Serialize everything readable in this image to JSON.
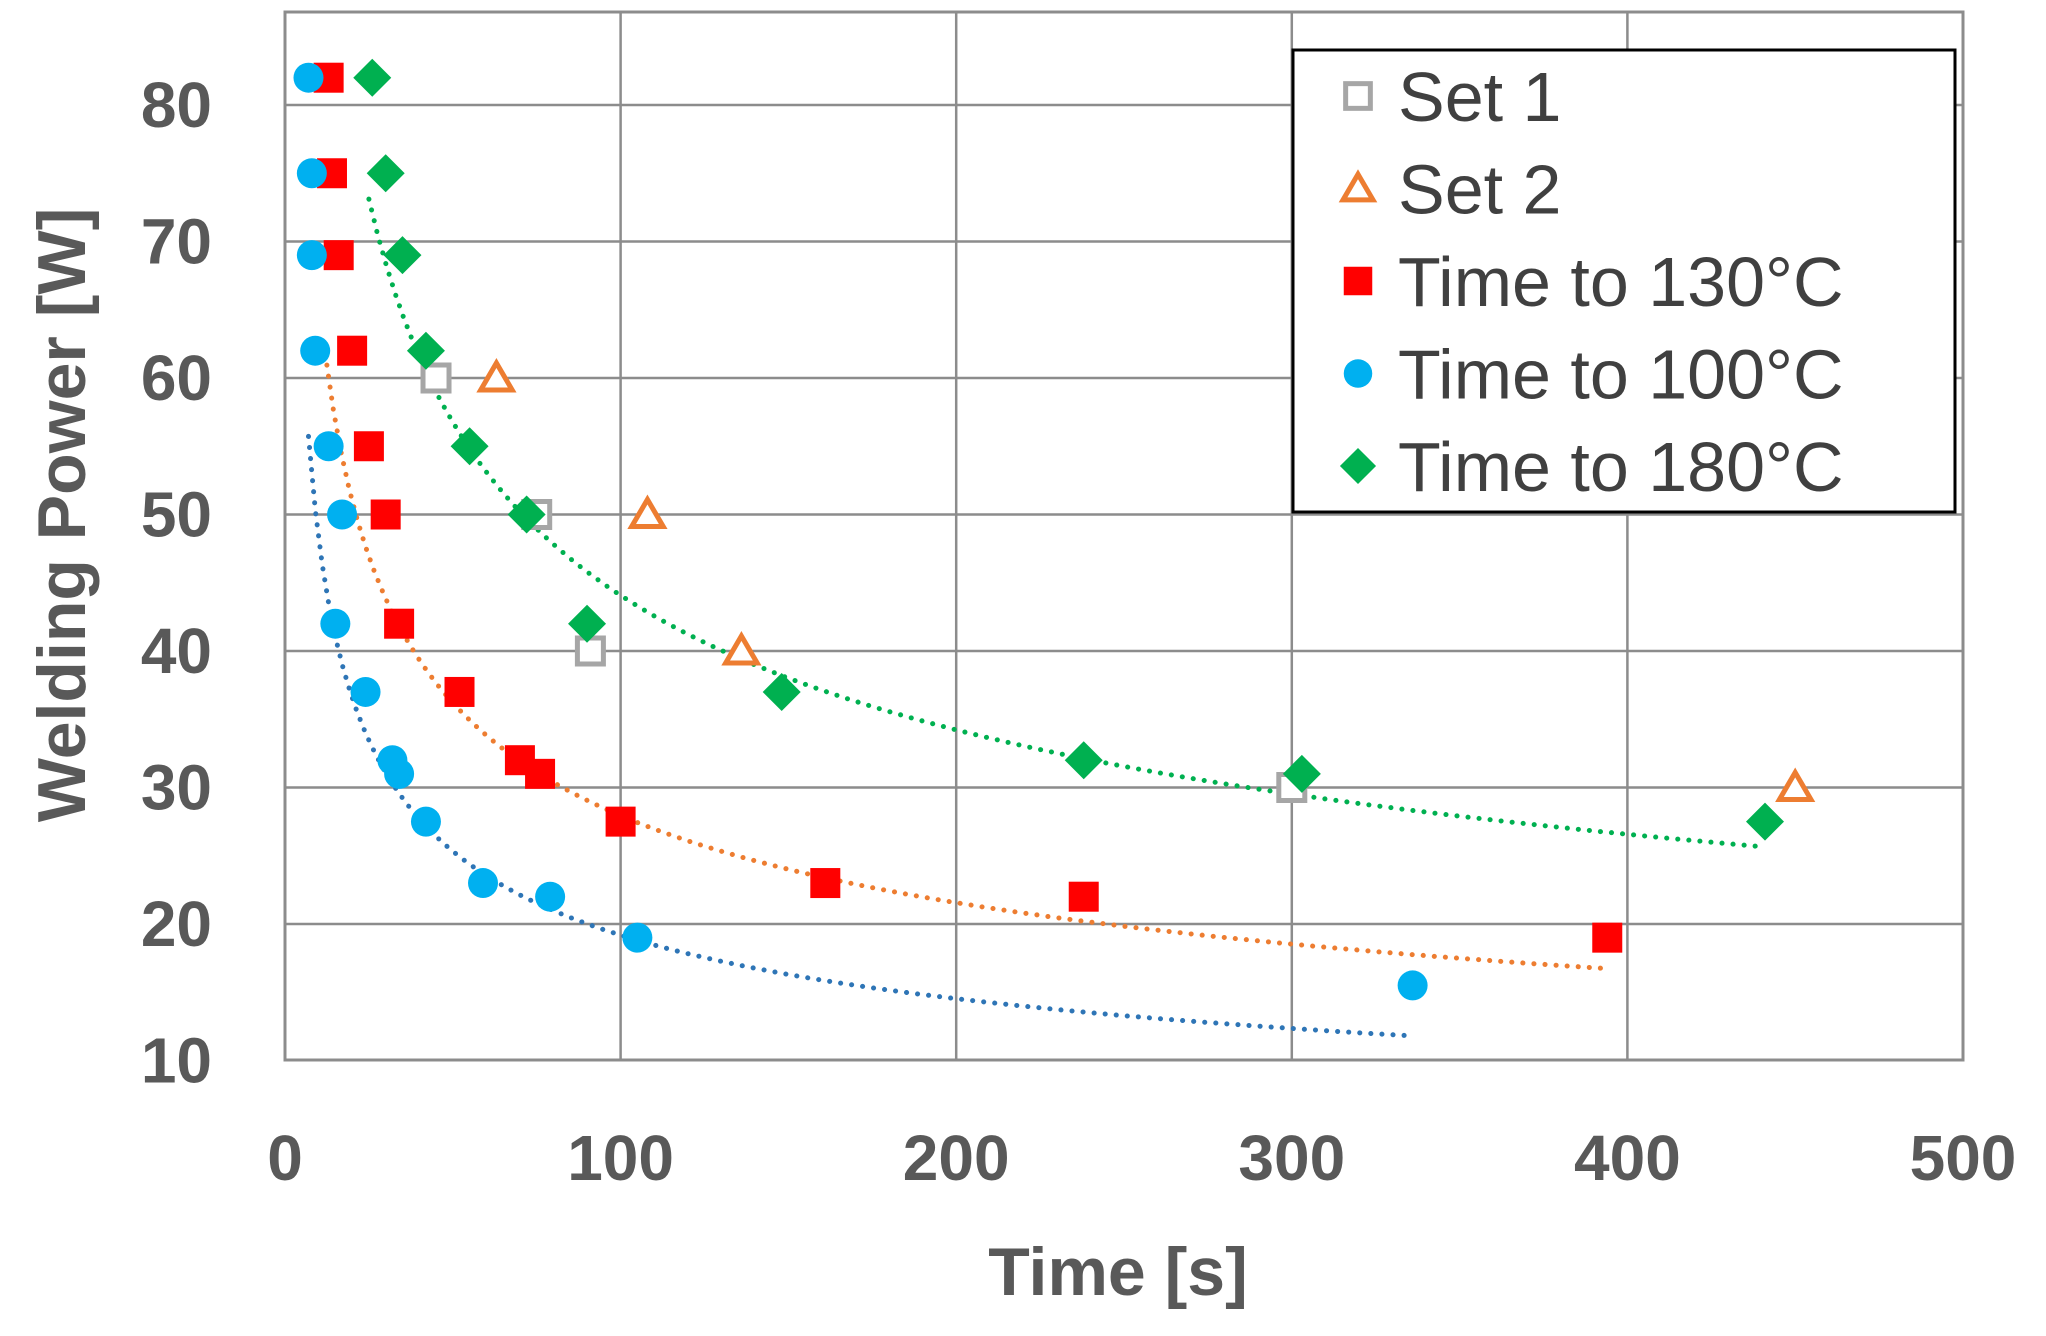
{
  "chart_data": {
    "type": "scatter",
    "title": "",
    "xlabel": "Time [s]",
    "ylabel": "Welding Power [W]",
    "xlim": [
      0,
      500
    ],
    "ylim": [
      10,
      85
    ],
    "xticks": [
      0,
      100,
      200,
      300,
      400,
      500
    ],
    "yticks": [
      10,
      20,
      30,
      40,
      50,
      60,
      70,
      80
    ],
    "grid": true,
    "legend_position": "top-right",
    "series": [
      {
        "name": "Set 1",
        "marker": "hollow-square",
        "color": "#a6a6a6",
        "points": [
          [
            45,
            60
          ],
          [
            75,
            50
          ],
          [
            91,
            40
          ],
          [
            300,
            30
          ]
        ]
      },
      {
        "name": "Set 2",
        "marker": "hollow-triangle",
        "color": "#ed7d31",
        "points": [
          [
            63,
            60
          ],
          [
            108,
            50
          ],
          [
            136,
            40
          ],
          [
            450,
            30
          ]
        ]
      },
      {
        "name": "Time to 130°C",
        "marker": "square",
        "color": "#ff0000",
        "points": [
          [
            13,
            82
          ],
          [
            14,
            75
          ],
          [
            16,
            69
          ],
          [
            20,
            62
          ],
          [
            25,
            55
          ],
          [
            30,
            50
          ],
          [
            34,
            42
          ],
          [
            52,
            37
          ],
          [
            70,
            32
          ],
          [
            76,
            31
          ],
          [
            100,
            27.5
          ],
          [
            161,
            23
          ],
          [
            238,
            22
          ],
          [
            394,
            19
          ]
        ]
      },
      {
        "name": "Time to 100°C",
        "marker": "circle",
        "color": "#00b0f0",
        "points": [
          [
            7,
            82
          ],
          [
            8,
            75
          ],
          [
            8,
            69
          ],
          [
            9,
            62
          ],
          [
            13,
            55
          ],
          [
            17,
            50
          ],
          [
            15,
            42
          ],
          [
            24,
            37
          ],
          [
            32,
            32
          ],
          [
            34,
            31
          ],
          [
            42,
            27.5
          ],
          [
            59,
            23
          ],
          [
            79,
            22
          ],
          [
            105,
            19
          ],
          [
            336,
            15.5
          ]
        ]
      },
      {
        "name": "Time to 180°C",
        "marker": "diamond",
        "color": "#00b050",
        "points": [
          [
            26,
            82
          ],
          [
            30,
            75
          ],
          [
            35,
            69
          ],
          [
            42,
            62
          ],
          [
            55,
            55
          ],
          [
            72,
            50
          ],
          [
            90,
            42
          ],
          [
            148,
            37
          ],
          [
            238,
            32
          ],
          [
            303,
            31
          ],
          [
            441,
            27.5
          ]
        ]
      }
    ],
    "trendlines": [
      {
        "name": "trend-130",
        "color": "#ed7d31",
        "a": 156.4,
        "b": -0.374,
        "x_range": [
          12,
          394
        ]
      },
      {
        "name": "trend-100",
        "color": "#2e75b6",
        "a": 121.6,
        "b": -0.401,
        "x_range": [
          7,
          336
        ]
      },
      {
        "name": "trend-180",
        "color": "#00b050",
        "a": 236.7,
        "b": -0.365,
        "x_range": [
          25,
          441
        ]
      }
    ]
  }
}
